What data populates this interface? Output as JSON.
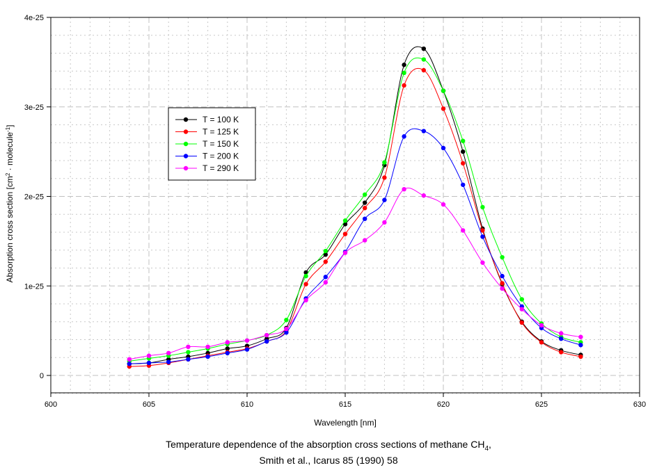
{
  "chart_data": {
    "type": "line",
    "title": "",
    "xlabel": "Wavelength [nm]",
    "ylabel_main": "Absorption cross section [cm",
    "ylabel_sup1": "2",
    "ylabel_mid": " · molecule",
    "ylabel_sup2": "-1",
    "ylabel_end": "]",
    "xlim": [
      600,
      630
    ],
    "ylim": [
      0,
      4e-25
    ],
    "x_ticks": [
      600,
      605,
      610,
      615,
      620,
      625,
      630
    ],
    "x_tick_labels": [
      "600",
      "605",
      "610",
      "615",
      "620",
      "625",
      "630"
    ],
    "y_ticks": [
      0,
      1e-25,
      2e-25,
      3e-25,
      4e-25
    ],
    "y_tick_labels": [
      "0",
      "1e-25",
      "2e-25",
      "3e-25",
      "4e-25"
    ],
    "grid": true,
    "legend_position": "upper-left",
    "x": [
      604,
      605,
      606,
      607,
      608,
      609,
      610,
      611,
      612,
      613,
      614,
      615,
      616,
      617,
      618,
      619,
      620,
      621,
      622,
      623,
      624,
      625,
      626,
      627
    ],
    "y_unit_scale": 1e-26,
    "series": [
      {
        "name": "T = 100 K",
        "color": "#000000",
        "values": [
          1.3,
          1.4,
          1.8,
          2.1,
          2.5,
          3.0,
          3.3,
          4.1,
          5.3,
          11.5,
          13.5,
          16.9,
          19.3,
          23.5,
          34.7,
          36.5,
          31.8,
          25.0,
          16.4,
          10.2,
          6.0,
          3.8,
          2.8,
          2.3
        ]
      },
      {
        "name": "T = 125 K",
        "color": "#ff0000",
        "values": [
          1.0,
          1.1,
          1.4,
          1.8,
          2.2,
          2.6,
          3.0,
          3.8,
          5.0,
          10.2,
          12.7,
          15.8,
          18.7,
          22.1,
          32.4,
          34.1,
          29.8,
          23.7,
          16.2,
          10.3,
          5.9,
          3.7,
          2.6,
          2.1
        ]
      },
      {
        "name": "T = 150 K",
        "color": "#00ff00",
        "values": [
          1.6,
          1.9,
          2.2,
          2.6,
          3.0,
          3.5,
          3.9,
          4.5,
          6.2,
          11.1,
          13.9,
          17.3,
          20.2,
          23.8,
          33.8,
          35.3,
          31.8,
          26.2,
          18.8,
          13.2,
          8.5,
          5.8,
          4.3,
          3.7
        ]
      },
      {
        "name": "T = 200 K",
        "color": "#0000ff",
        "values": [
          1.3,
          1.4,
          1.5,
          1.8,
          2.1,
          2.5,
          2.9,
          3.8,
          4.8,
          8.6,
          11.0,
          13.8,
          17.5,
          19.6,
          26.7,
          27.3,
          25.4,
          21.3,
          15.5,
          11.1,
          7.7,
          5.3,
          4.1,
          3.4
        ]
      },
      {
        "name": "T = 290 K",
        "color": "#ff00ff",
        "values": [
          1.8,
          2.2,
          2.5,
          3.2,
          3.2,
          3.7,
          3.9,
          4.5,
          5.2,
          8.4,
          10.4,
          13.7,
          15.1,
          17.1,
          20.8,
          20.1,
          19.1,
          16.2,
          12.6,
          9.7,
          7.4,
          5.6,
          4.7,
          4.3
        ]
      }
    ]
  },
  "caption": {
    "line1_main": "Temperature dependence of the absorption cross sections of methane CH",
    "line1_sub": "4",
    "line1_end": ",",
    "line2": "Smith et al., Icarus 85 (1990) 58"
  }
}
